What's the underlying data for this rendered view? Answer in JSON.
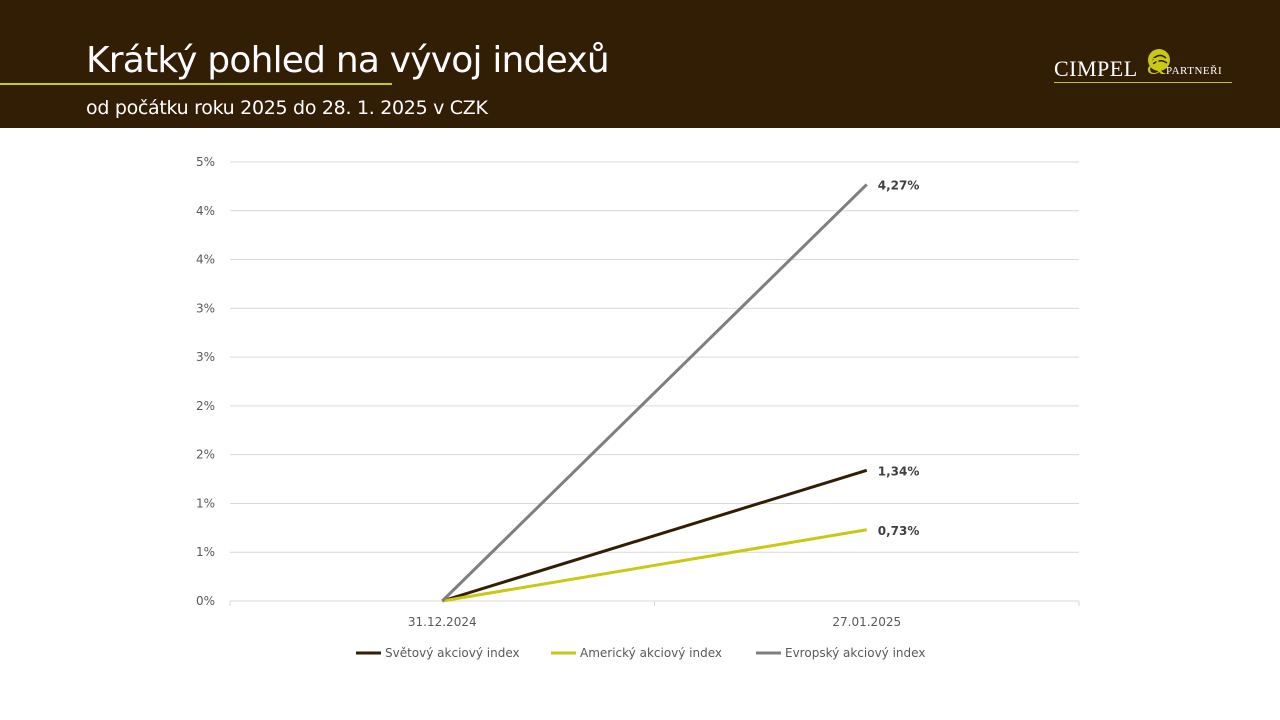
{
  "header": {
    "title": "Krátký pohled na vývoj indexů",
    "subtitle": "od počátku roku 2025 do 28. 1. 2025 v CZK",
    "logo": {
      "name": "CIMPEL",
      "amp": "&",
      "suffix": "PARTNEŘI"
    }
  },
  "colors": {
    "header_bg": "#321d05",
    "accent": "#c9c814",
    "gridline": "#d9d9d9"
  },
  "chart_data": {
    "type": "line",
    "categories": [
      "31.12.2024",
      "27.01.2025"
    ],
    "ylim": [
      0,
      4.5
    ],
    "y_ticks": [
      0,
      0.5,
      1.0,
      1.5,
      2.0,
      2.5,
      3.0,
      3.5,
      4.0,
      4.5
    ],
    "y_tick_labels": [
      "0%",
      "1%",
      "1%",
      "2%",
      "2%",
      "3%",
      "3%",
      "4%",
      "4%",
      "5%"
    ],
    "grid": true,
    "legend_position": "bottom",
    "series": [
      {
        "name": "Světový akciový index",
        "values": [
          0,
          1.34
        ],
        "end_label": "1,34%",
        "color": "#321d05"
      },
      {
        "name": "Americký akciový index",
        "values": [
          0,
          0.73
        ],
        "end_label": "0,73%",
        "color": "#c9c814"
      },
      {
        "name": "Evropský akciový index",
        "values": [
          0,
          4.27
        ],
        "end_label": "4,27%",
        "color": "#7f7f7f"
      }
    ]
  }
}
